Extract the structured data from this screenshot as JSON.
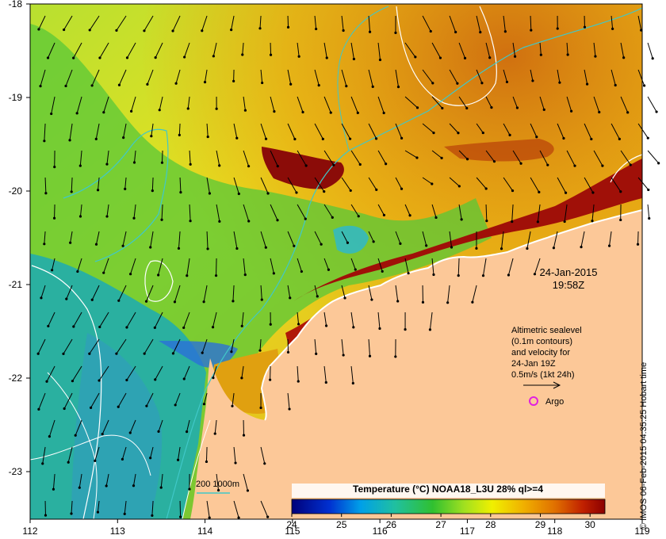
{
  "map": {
    "date": "24-Jan-2015",
    "time": "19:58Z",
    "legend_lines": [
      "Altimetric sealevel",
      "(0.1m contours)",
      "and velocity for",
      "24-Jan 19Z",
      "0.5m/s (1kt 24h)"
    ],
    "argo_label": "Argo",
    "depth_legend": "200  1000m",
    "colorbar": {
      "title": "Temperature (°C) NOAA18_L3U 28% ql>=4",
      "min": 24,
      "max": 30.3,
      "ticks": [
        "24",
        "25",
        "26",
        "27",
        "28",
        "29",
        "30"
      ]
    },
    "credit": "© IMOS 06-Feb-2015 04:35:25 Hobart time",
    "x_ticks": [
      "112",
      "113",
      "114",
      "115",
      "116",
      "117",
      "118",
      "119"
    ],
    "y_ticks": [
      "-18",
      "-19",
      "-20",
      "-21",
      "-22",
      "-23"
    ],
    "colors": {
      "land": "#fcc898",
      "sst_cold": "#2aaaa0",
      "sst_warm": "#8b0000",
      "contour_cyan": "#40c8c8",
      "argo_marker": "#e020e0"
    }
  }
}
